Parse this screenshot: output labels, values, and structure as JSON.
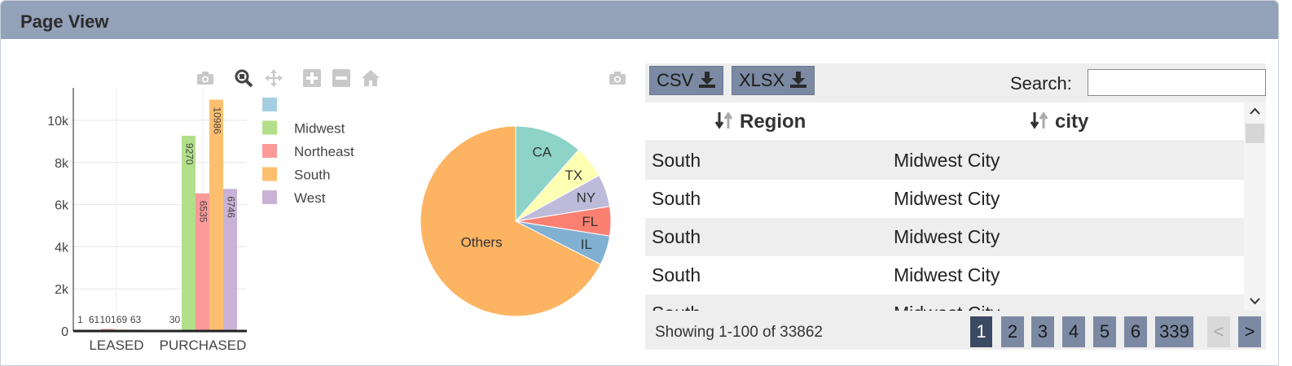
{
  "panel": {
    "title": "Page View"
  },
  "bar_chart": {
    "ytick_labels": [
      "0",
      "2k",
      "4k",
      "6k",
      "8k",
      "10k"
    ],
    "category_labels": [
      "LEASED",
      "PURCHASED"
    ],
    "bar_labels": [
      [
        "1",
        "61",
        "101",
        "69",
        "63"
      ],
      [
        "30",
        "9270",
        "6535",
        "10986",
        "6746"
      ]
    ],
    "legend": [
      "",
      "Midwest",
      "Northeast",
      "South",
      "West"
    ]
  },
  "chart_data": [
    {
      "type": "bar",
      "categories": [
        "LEASED",
        "PURCHASED"
      ],
      "series": [
        {
          "name": "",
          "values": [
            1,
            30
          ],
          "color": "#a6cee3"
        },
        {
          "name": "Midwest",
          "values": [
            61,
            9270
          ],
          "color": "#b2df8a"
        },
        {
          "name": "Northeast",
          "values": [
            101,
            6535
          ],
          "color": "#fb9a99"
        },
        {
          "name": "South",
          "values": [
            69,
            10986
          ],
          "color": "#fdbf6f"
        },
        {
          "name": "West",
          "values": [
            63,
            6746
          ],
          "color": "#cab2d6"
        }
      ],
      "ylim": [
        0,
        11500
      ],
      "grid": true,
      "legend_position": "right"
    },
    {
      "type": "pie",
      "labels": [
        "CA",
        "TX",
        "NY",
        "FL",
        "IL",
        "Others"
      ],
      "values": [
        11.5,
        5.5,
        5.5,
        5,
        5,
        67.5
      ],
      "colors": [
        "#8dd3c7",
        "#ffffb3",
        "#bebada",
        "#fb8072",
        "#80b1d3",
        "#fdb462"
      ]
    }
  ],
  "modebar": {
    "icons": [
      "camera-icon",
      "zoom-icon",
      "pan-icon",
      "zoom-in-icon",
      "zoom-out-icon",
      "home-icon"
    ]
  },
  "table": {
    "export_buttons": [
      "CSV",
      "XLSX"
    ],
    "search_label": "Search:",
    "search_value": "",
    "columns": [
      "Region",
      "city"
    ],
    "rows": [
      [
        "South",
        "Midwest City"
      ],
      [
        "South",
        "Midwest City"
      ],
      [
        "South",
        "Midwest City"
      ],
      [
        "South",
        "Midwest City"
      ],
      [
        "South",
        "Midwest City"
      ]
    ],
    "showing": "Showing 1-100 of 33862",
    "pages": [
      "1",
      "2",
      "3",
      "4",
      "5",
      "6",
      "339"
    ],
    "prev": "<",
    "next": ">"
  }
}
